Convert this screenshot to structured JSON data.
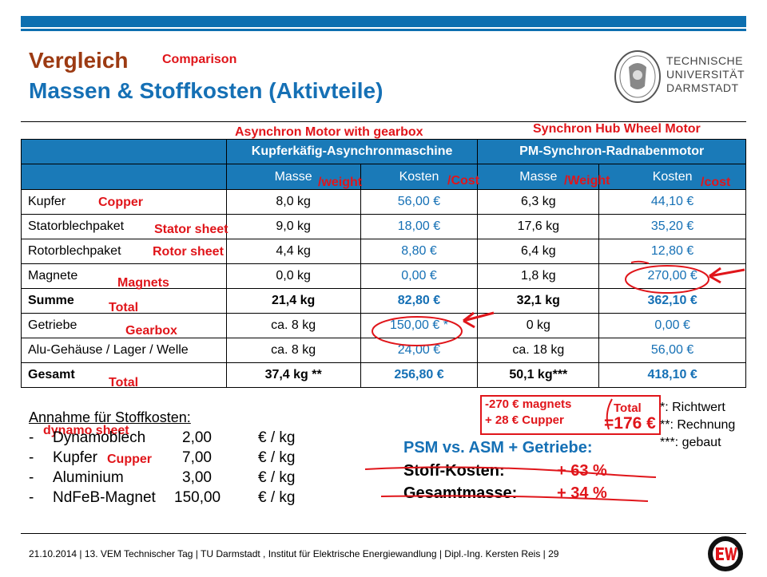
{
  "header": {
    "title_de": "Vergleich",
    "title_en": "Comparison",
    "subtitle": "Massen & Stoffkosten (Aktivteile)"
  },
  "logo": {
    "line1": "TECHNISCHE",
    "line2": "UNIVERSITÄT",
    "line3": "DARMSTADT"
  },
  "table": {
    "group_annotations": [
      "Asynchron Motor with gearbox",
      "Synchron Hub Wheel Motor"
    ],
    "groups": [
      "Kupferkäfig-Asynchronmaschine",
      "PM-Synchron-Radnabenmotor"
    ],
    "subheaders": [
      "Masse",
      "Kosten",
      "Masse",
      "Kosten"
    ],
    "subheader_annotations": [
      "/weight",
      "/Cost",
      "/Weight",
      "/cost"
    ],
    "rows": [
      {
        "label": "Kupfer",
        "note": "Copper",
        "cells": [
          "8,0 kg",
          "56,00 €",
          "6,3 kg",
          "44,10 €"
        ]
      },
      {
        "label": "Statorblechpaket",
        "note": "Stator sheet",
        "cells": [
          "9,0 kg",
          "18,00 €",
          "17,6 kg",
          "35,20 €"
        ]
      },
      {
        "label": "Rotorblechpaket",
        "note": "Rotor sheet",
        "cells": [
          "4,4 kg",
          "8,80 €",
          "6,4 kg",
          "12,80 €"
        ]
      },
      {
        "label": "Magnete",
        "note": "Magnets",
        "cells": [
          "0,0 kg",
          "0,00 €",
          "1,8 kg",
          "270,00 €"
        ]
      },
      {
        "label": "Summe",
        "note": "Total",
        "cells": [
          "21,4 kg",
          "82,80 €",
          "32,1 kg",
          "362,10 €"
        ]
      },
      {
        "label": "Getriebe",
        "note": "Gearbox",
        "cells": [
          "ca. 8 kg",
          "150,00 € *",
          "0 kg",
          "0,00 €"
        ]
      },
      {
        "label": "Alu-Gehäuse / Lager / Welle",
        "note": "",
        "cells": [
          "ca. 8 kg",
          "24,00 €",
          "ca. 18 kg",
          "56,00 €"
        ]
      },
      {
        "label": "Gesamt",
        "note": "Total",
        "cells": [
          "37,4 kg **",
          "256,80 €",
          "50,1 kg***",
          "418,10 €"
        ]
      }
    ]
  },
  "handnotes": {
    "magnets_line": "-270 € magnets",
    "cupper_line": "+ 28 € Cupper",
    "total_label": "Total",
    "total_value": "=176 €"
  },
  "footnotes": [
    "*:  Richtwert",
    "**:  Rechnung",
    "***: gebaut"
  ],
  "assumptions": {
    "title": "Annahme für Stoffkosten:",
    "note_dynamo": "dynamo sheet",
    "items": [
      {
        "bullet": "-",
        "name": "Dynamoblech",
        "value": "2,00",
        "unit": "€ / kg",
        "note": ""
      },
      {
        "bullet": "-",
        "name": "Kupfer",
        "value": "7,00",
        "unit": "€ / kg",
        "note": "Cupper"
      },
      {
        "bullet": "-",
        "name": "Aluminium",
        "value": "3,00",
        "unit": "€ / kg",
        "note": ""
      },
      {
        "bullet": "-",
        "name": "NdFeB-Magnet",
        "value": "150,00",
        "unit": "€ / kg",
        "note": ""
      }
    ]
  },
  "summary": {
    "title": "PSM vs. ASM + Getriebe:",
    "lines": [
      {
        "label": "Stoff-Kosten:",
        "value": "+ 63 %"
      },
      {
        "label": "Gesamtmasse:",
        "value": "+ 34 %"
      }
    ]
  },
  "footer": {
    "text": "21.10.2014  |  13. VEM Technischer Tag  |  TU Darmstadt , Institut für Elektrische Energiewandlung  |  Dipl.-Ing. Kersten Reis  |  29"
  },
  "colors": {
    "blue": "#1570b5",
    "header_bg": "#1a7ab8",
    "title_brown": "#9c3a12",
    "annotation_red": "#e0151a"
  }
}
